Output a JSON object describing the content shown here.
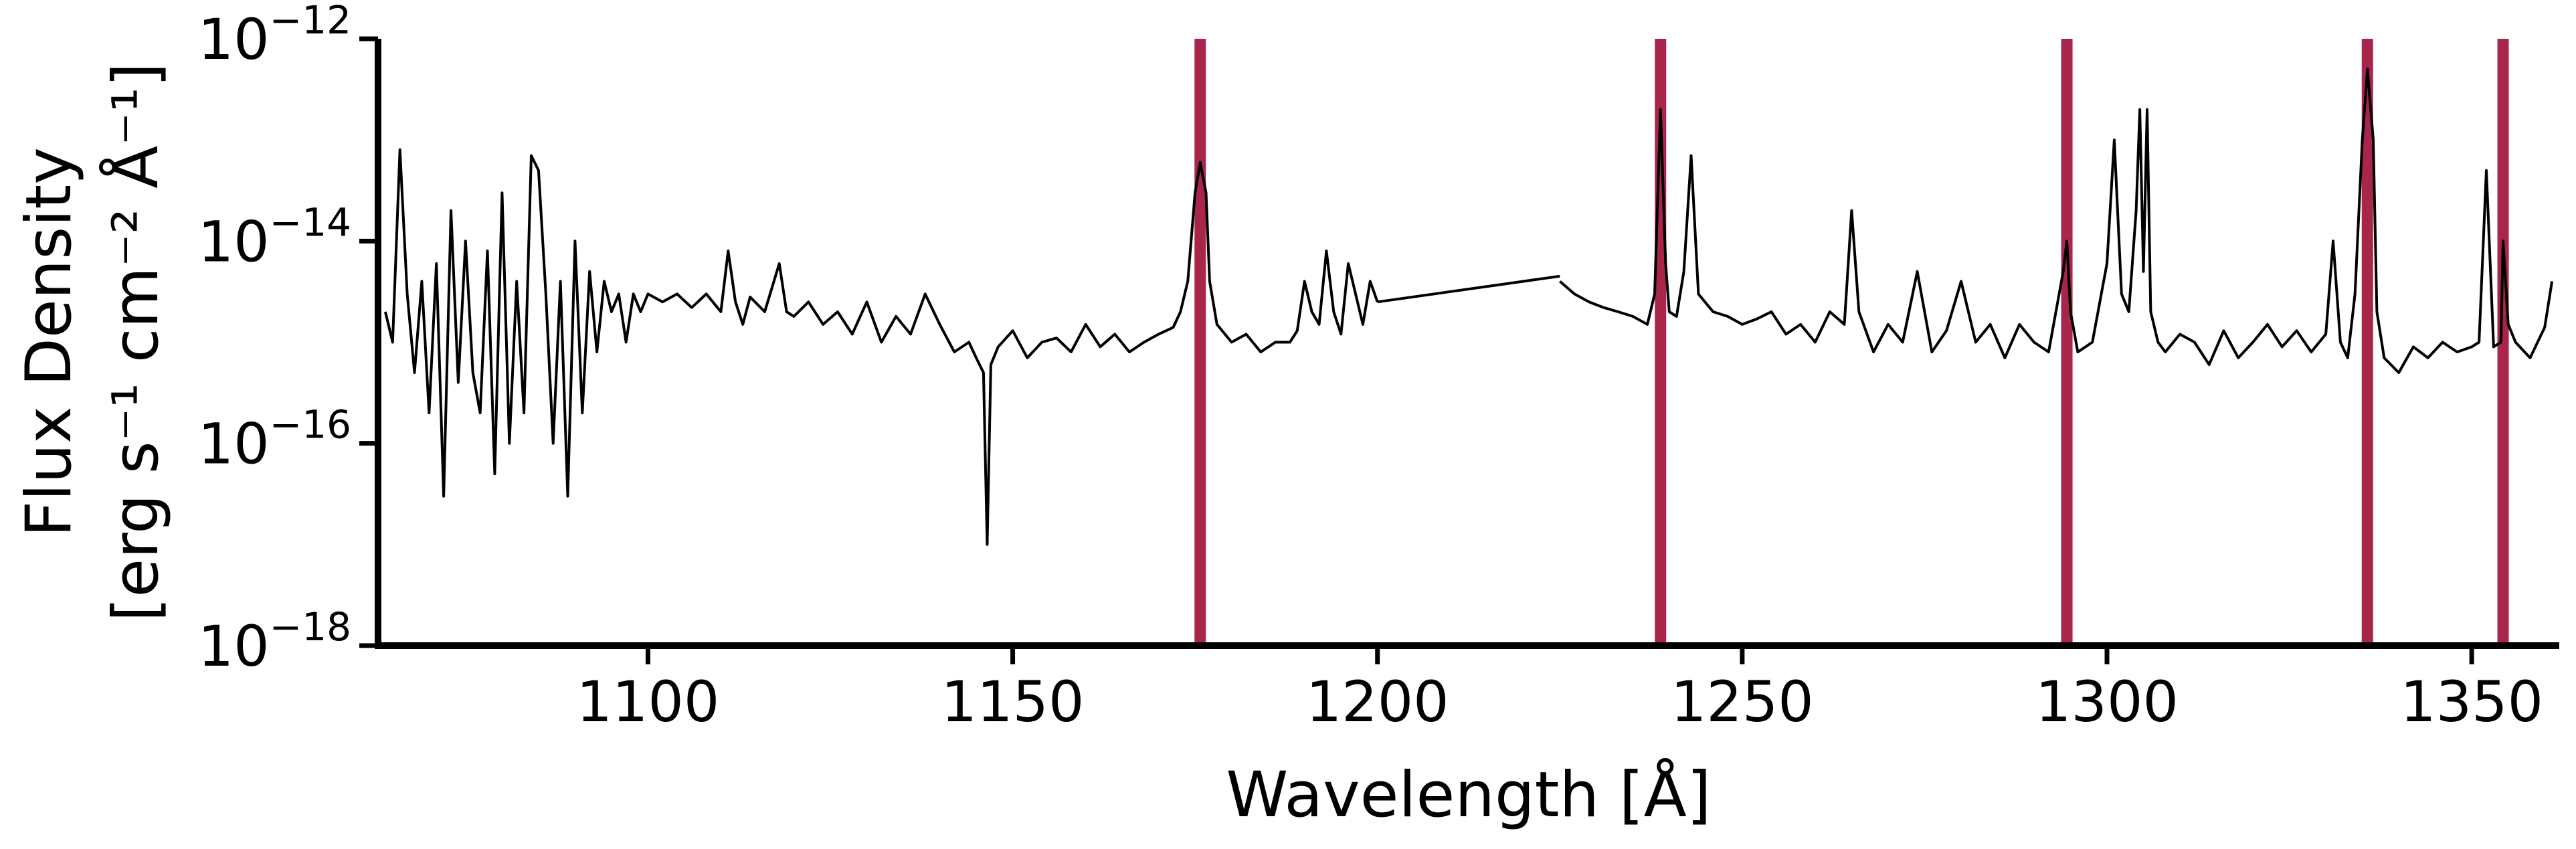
{
  "chart_data": {
    "type": "line",
    "xlabel": "Wavelength [Å]",
    "ylabel_line1": "Flux Density",
    "ylabel_line2": "[erg s⁻¹ cm⁻² Å⁻¹]",
    "xlim": [
      1063,
      1362
    ],
    "ylim": [
      1e-18,
      1e-12
    ],
    "y_scale": "log",
    "grid": false,
    "legend": "none",
    "x_ticks": [
      1100,
      1150,
      1200,
      1250,
      1300,
      1350
    ],
    "x_tick_labels": [
      "1100",
      "1150",
      "1200",
      "1250",
      "1300",
      "1350"
    ],
    "y_ticks": [
      1e-18,
      1e-16,
      1e-14,
      1e-12
    ],
    "y_tick_labels": [
      {
        "base": "10",
        "exp": "−18"
      },
      {
        "base": "10",
        "exp": "−16"
      },
      {
        "base": "10",
        "exp": "−14"
      },
      {
        "base": "10",
        "exp": "−12"
      }
    ],
    "vertical_lines": {
      "color": "#A8264B",
      "x": [
        1175.7,
        1238.8,
        1294.5,
        1335.7,
        1354.3
      ]
    },
    "series": [
      {
        "color": "#000000",
        "segments": [
          {
            "x": [
              1064,
              1065,
              1066,
              1067,
              1068,
              1069,
              1070,
              1071,
              1072,
              1073,
              1074,
              1075,
              1076,
              1077,
              1078,
              1079,
              1080,
              1081,
              1082,
              1083,
              1084,
              1085,
              1086,
              1087,
              1088,
              1089,
              1090,
              1091,
              1092,
              1093,
              1094,
              1095,
              1096,
              1097,
              1098,
              1099,
              1100,
              1102,
              1104,
              1106,
              1108,
              1110,
              1111,
              1112,
              1113,
              1114,
              1116,
              1118,
              1119,
              1120,
              1122,
              1124,
              1126,
              1128,
              1130,
              1132,
              1134,
              1136,
              1138,
              1140,
              1142,
              1144,
              1145,
              1146,
              1146.5,
              1147,
              1148,
              1150,
              1152,
              1154,
              1156,
              1158,
              1160,
              1162,
              1164,
              1166,
              1168,
              1170,
              1172,
              1173,
              1174,
              1175,
              1175.7,
              1176.5,
              1177,
              1178,
              1180,
              1182,
              1184,
              1186,
              1188,
              1189,
              1190,
              1191,
              1192,
              1193,
              1194,
              1195,
              1196,
              1197,
              1198,
              1199,
              1200
            ],
            "y": [
              2e-15,
              1e-15,
              8e-14,
              3e-15,
              5e-16,
              4e-15,
              2e-16,
              6e-15,
              3e-17,
              2e-14,
              4e-16,
              1e-14,
              5e-16,
              2e-16,
              8e-15,
              5e-17,
              3e-14,
              1e-16,
              4e-15,
              2e-16,
              7e-14,
              5e-14,
              3e-15,
              1e-16,
              4e-15,
              3e-17,
              1e-14,
              2e-16,
              5e-15,
              8e-16,
              4e-15,
              2e-15,
              3e-15,
              1e-15,
              3e-15,
              2e-15,
              3e-15,
              2.5e-15,
              3e-15,
              2.2e-15,
              3e-15,
              2e-15,
              8e-15,
              2.5e-15,
              1.5e-15,
              2.8e-15,
              2e-15,
              6e-15,
              2e-15,
              1.8e-15,
              2.5e-15,
              1.5e-15,
              2e-15,
              1.2e-15,
              2.5e-15,
              1e-15,
              1.8e-15,
              1.2e-15,
              3e-15,
              1.5e-15,
              8e-16,
              1e-15,
              7e-16,
              5e-16,
              1e-17,
              6e-16,
              9e-16,
              1.3e-15,
              7e-16,
              1e-15,
              1.1e-15,
              8e-16,
              1.5e-15,
              9e-16,
              1.2e-15,
              8e-16,
              1e-15,
              1.2e-15,
              1.4e-15,
              2e-15,
              4e-15,
              3e-14,
              6e-14,
              3e-14,
              4e-15,
              1.5e-15,
              1e-15,
              1.2e-15,
              8e-16,
              1e-15,
              1e-15,
              1.3e-15,
              4e-15,
              2e-15,
              1.5e-15,
              8e-15,
              2e-15,
              1.2e-15,
              6e-15,
              3e-15,
              1.5e-15,
              4e-15,
              2.5e-15
            ]
          },
          {
            "x": [
              1200,
              1225
            ],
            "y": [
              2.5e-15,
              4.5e-15
            ]
          },
          {
            "x": [
              1225,
              1227,
              1229,
              1231,
              1233,
              1235,
              1237,
              1238,
              1238.8,
              1239.5,
              1240,
              1241,
              1242,
              1243,
              1244,
              1246,
              1248,
              1250,
              1252,
              1254,
              1256,
              1258,
              1260,
              1262,
              1264,
              1265,
              1266,
              1268,
              1270,
              1272,
              1274,
              1276,
              1278,
              1280,
              1282,
              1284,
              1286,
              1288,
              1290,
              1292,
              1294,
              1294.5,
              1295,
              1296,
              1298,
              1300,
              1301,
              1302,
              1303,
              1304,
              1304.5,
              1305,
              1305.5,
              1306,
              1307,
              1308,
              1310,
              1312,
              1314,
              1316,
              1318,
              1320,
              1322,
              1324,
              1326,
              1328,
              1330,
              1331,
              1332,
              1333,
              1334,
              1335,
              1335.7,
              1336.5,
              1337,
              1338,
              1340,
              1342,
              1344,
              1346,
              1348,
              1350,
              1351,
              1352,
              1353,
              1354,
              1354.3,
              1355,
              1356,
              1358,
              1360,
              1361
            ],
            "y": [
              4e-15,
              3e-15,
              2.5e-15,
              2.2e-15,
              2e-15,
              1.8e-15,
              1.5e-15,
              3e-15,
              2e-13,
              6e-15,
              2e-15,
              1.8e-15,
              5e-15,
              7e-14,
              3e-15,
              2e-15,
              1.8e-15,
              1.5e-15,
              1.7e-15,
              2e-15,
              1.2e-15,
              1.5e-15,
              1e-15,
              2e-15,
              1.5e-15,
              2e-14,
              2e-15,
              8e-16,
              1.5e-15,
              1e-15,
              5e-15,
              8e-16,
              1.3e-15,
              4e-15,
              1e-15,
              1.5e-15,
              7e-16,
              1.5e-15,
              1e-15,
              8e-16,
              5e-15,
              1e-14,
              2e-15,
              8e-16,
              1e-15,
              6e-15,
              1e-13,
              3e-15,
              2e-15,
              2e-14,
              2e-13,
              5e-15,
              2e-13,
              2e-15,
              1e-15,
              8e-16,
              1.2e-15,
              1e-15,
              6e-16,
              1.3e-15,
              7e-16,
              1e-15,
              1.5e-15,
              9e-16,
              1.3e-15,
              8e-16,
              1.2e-15,
              1e-14,
              1e-15,
              7e-16,
              3e-15,
              1e-13,
              5e-13,
              1e-13,
              2e-15,
              7e-16,
              5e-16,
              9e-16,
              7e-16,
              1e-15,
              8e-16,
              9e-16,
              1e-15,
              5e-14,
              9e-16,
              1e-15,
              1e-14,
              1.5e-15,
              1e-15,
              7e-16,
              1.4e-15,
              4e-15
            ]
          }
        ]
      }
    ]
  }
}
